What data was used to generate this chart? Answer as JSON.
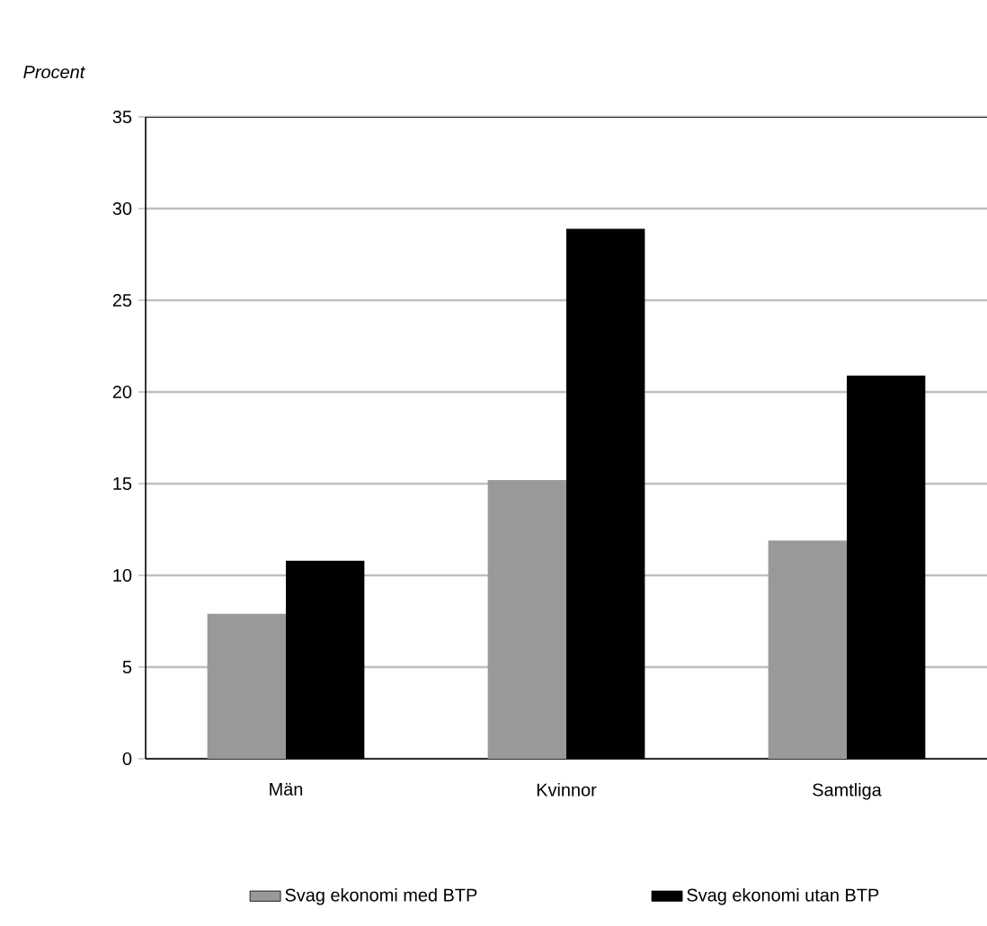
{
  "chart_data": {
    "type": "bar",
    "ylabel": "Procent",
    "categories": [
      "Män",
      "Kvinnor",
      "Samtliga"
    ],
    "series": [
      {
        "name": "Svag ekonomi med BTP",
        "color": "#999999",
        "values": [
          7.9,
          15.2,
          11.9
        ]
      },
      {
        "name": "Svag ekonomi utan BTP",
        "color": "#000000",
        "values": [
          10.8,
          28.9,
          20.9
        ]
      }
    ],
    "ylim": [
      0,
      35
    ],
    "yticks": [
      0,
      5,
      10,
      15,
      20,
      25,
      30,
      35
    ],
    "grid": "y",
    "legend": "bottom"
  }
}
